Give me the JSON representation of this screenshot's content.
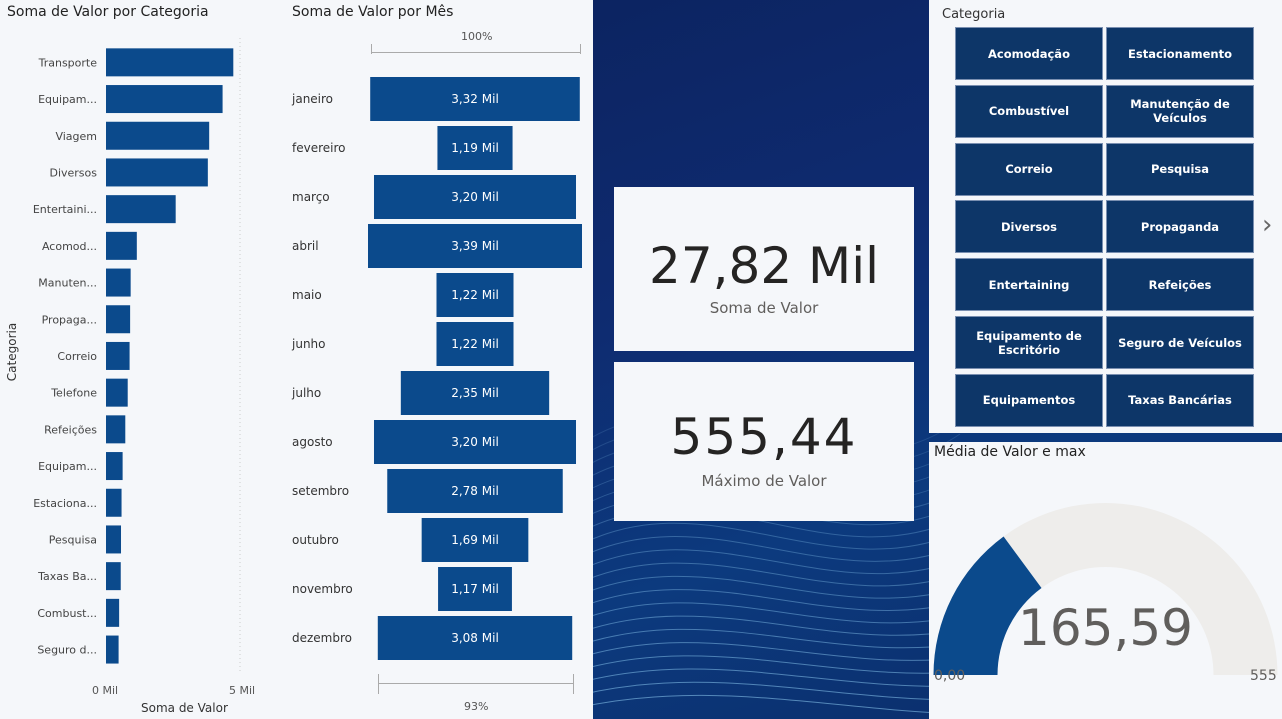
{
  "category_chart": {
    "title": "Soma de Valor por Categoria",
    "y_axis_title": "Categoria",
    "x_axis_title": "Soma de Valor",
    "x_ticks": [
      "0 Mil",
      "5 Mil"
    ],
    "category_labels": [
      "Transporte",
      "Equipam...",
      "Viagem",
      "Diversos",
      "Entertaini...",
      "Acomod...",
      "Manuten...",
      "Propaga...",
      "Correio",
      "Telefone",
      "Refeições",
      "Equipam...",
      "Estaciona...",
      "Pesquisa",
      "Taxas Ba...",
      "Combust...",
      "Seguro d..."
    ]
  },
  "month_chart": {
    "title": "Soma de Valor por Mês",
    "top_percent": "100%",
    "bottom_percent": "93%",
    "month_labels": [
      "janeiro",
      "fevereiro",
      "março",
      "abril",
      "maio",
      "junho",
      "julho",
      "agosto",
      "setembro",
      "outubro",
      "novembro",
      "dezembro"
    ],
    "value_labels": [
      "3,32 Mil",
      "1,19 Mil",
      "3,20 Mil",
      "3,39 Mil",
      "1,22 Mil",
      "1,22 Mil",
      "2,35 Mil",
      "3,20 Mil",
      "2,78 Mil",
      "1,69 Mil",
      "1,17 Mil",
      "3,08 Mil"
    ]
  },
  "kpi_sum": {
    "value": "27,82 Mil",
    "label": "Soma de Valor"
  },
  "kpi_max": {
    "value": "555,44",
    "label": "Máximo de Valor"
  },
  "slicer": {
    "title": "Categoria",
    "items": [
      "Acomodação",
      "Estacionamento",
      "Combustível",
      "Manutenção de Veículos",
      "Correio",
      "Pesquisa",
      "Diversos",
      "Propaganda",
      "Entertaining",
      "Refeições",
      "Equipamento de Escritório",
      "Seguro de Veículos",
      "Equipamentos",
      "Taxas Bancárias"
    ],
    "next_glyph": "›"
  },
  "gauge": {
    "title": "Média de Valor e max",
    "value_label": "165,59",
    "min_label": "0,00",
    "max_label": "555",
    "value": 165.59,
    "min": 0,
    "max": 555.44
  },
  "colors": {
    "bar": "#0b4a8c",
    "tile": "#0d3668",
    "gauge_track": "#eeedeb"
  },
  "chart_data": [
    {
      "type": "bar",
      "orientation": "horizontal",
      "title": "Soma de Valor por Categoria",
      "xlabel": "Soma de Valor",
      "ylabel": "Categoria",
      "xlim": [
        0,
        6000
      ],
      "categories": [
        "Transporte",
        "Equipam...",
        "Viagem",
        "Diversos",
        "Entertaini...",
        "Acomod...",
        "Manuten...",
        "Propaga...",
        "Correio",
        "Telefone",
        "Refeições",
        "Equipam...",
        "Estaciona...",
        "Pesquisa",
        "Taxas Ba...",
        "Combust...",
        "Seguro d..."
      ],
      "values": [
        4750,
        4350,
        3850,
        3800,
        2600,
        1150,
        920,
        900,
        880,
        810,
        720,
        620,
        580,
        560,
        550,
        490,
        470
      ]
    },
    {
      "type": "bar",
      "subtype": "funnel",
      "title": "Soma de Valor por Mês",
      "categories": [
        "janeiro",
        "fevereiro",
        "março",
        "abril",
        "maio",
        "junho",
        "julho",
        "agosto",
        "setembro",
        "outubro",
        "novembro",
        "dezembro"
      ],
      "values": [
        3320,
        1190,
        3200,
        3390,
        1220,
        1220,
        2350,
        3200,
        2780,
        1690,
        1170,
        3080
      ]
    }
  ]
}
